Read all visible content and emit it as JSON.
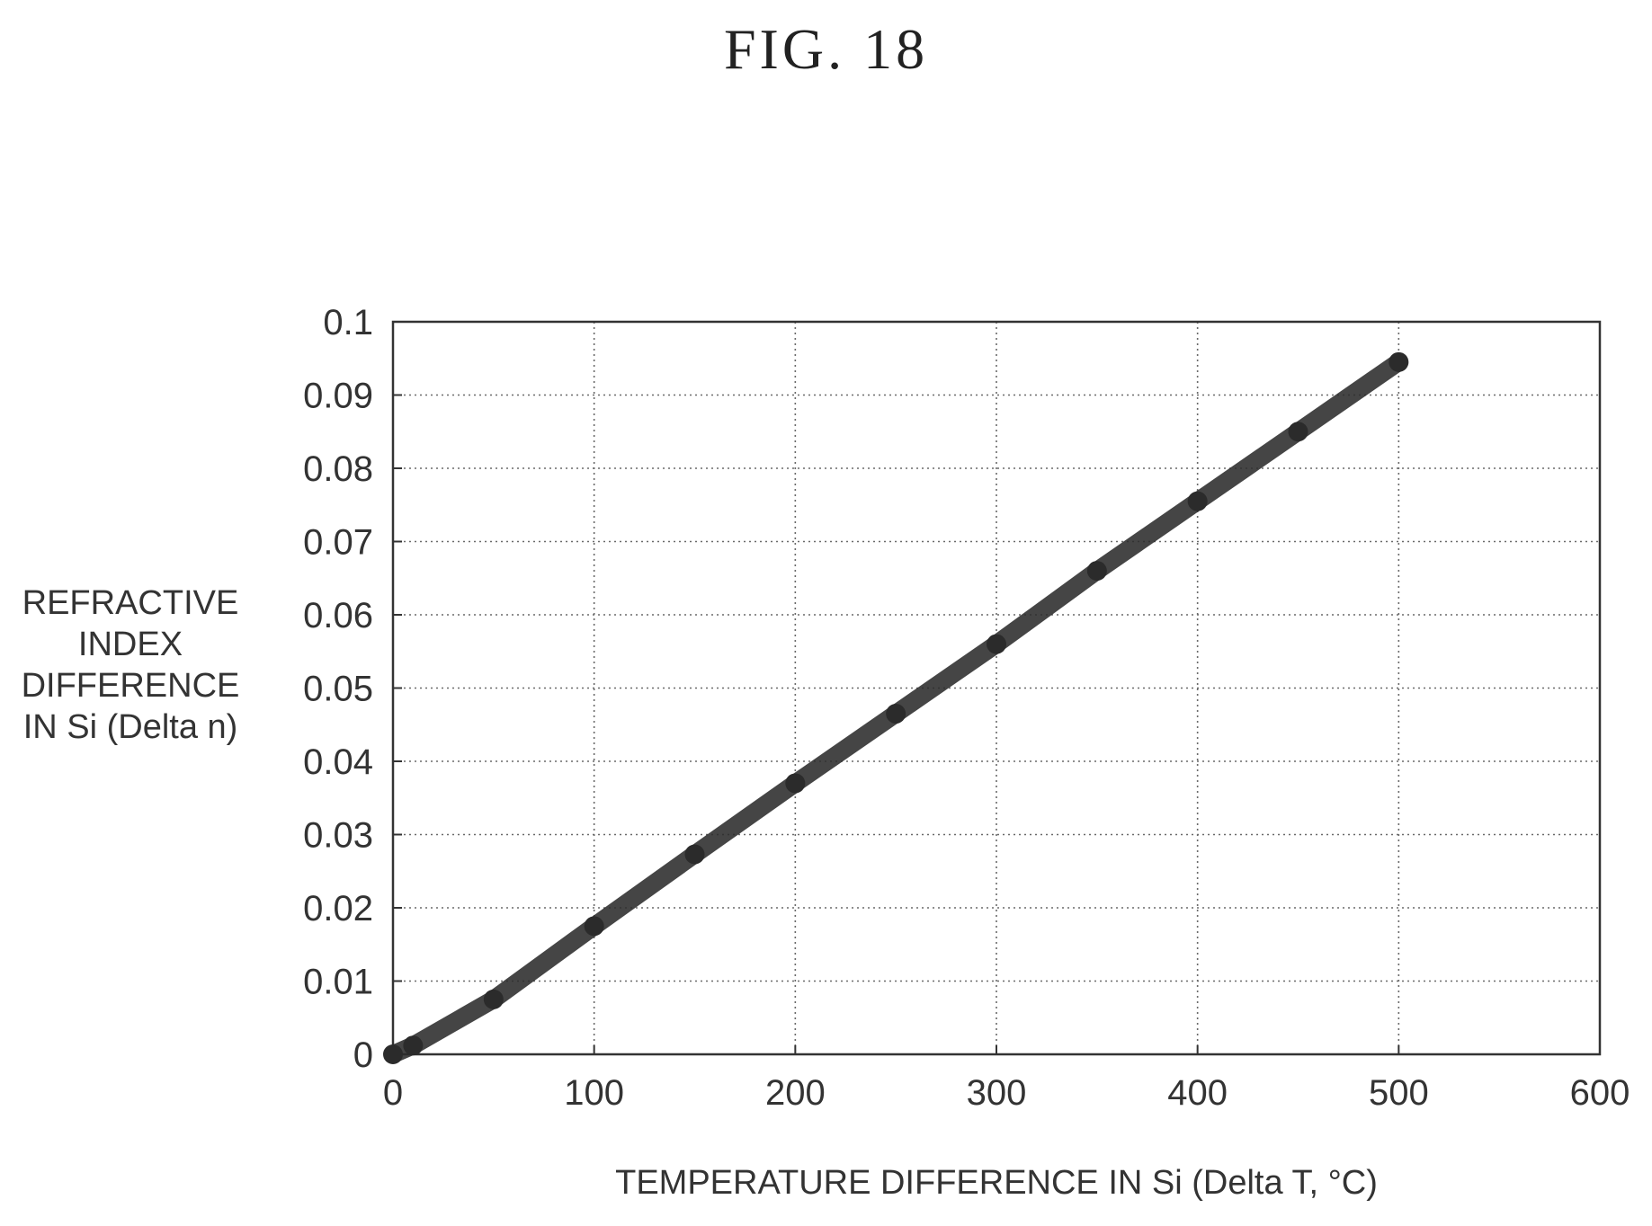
{
  "figure": {
    "title": "FIG. 18"
  },
  "chart_data": {
    "type": "line",
    "xlabel": "TEMPERATURE DIFFERENCE IN Si (Delta T, °C)",
    "ylabel": "REFRACTIVE\nINDEX\nDIFFERENCE\nIN Si (Delta n)",
    "xlim": [
      0,
      600
    ],
    "ylim": [
      0,
      0.1
    ],
    "x_ticks": [
      "0",
      "100",
      "200",
      "300",
      "400",
      "500",
      "600"
    ],
    "y_ticks": [
      "0",
      "0.01",
      "0.02",
      "0.03",
      "0.04",
      "0.05",
      "0.06",
      "0.07",
      "0.08",
      "0.09",
      "0.1"
    ],
    "grid": true,
    "series": [
      {
        "x": [
          0,
          10,
          50,
          100,
          150,
          200,
          250,
          300,
          350,
          400,
          450,
          500
        ],
        "y": [
          0,
          0.0012,
          0.0075,
          0.0175,
          0.0273,
          0.037,
          0.0465,
          0.056,
          0.066,
          0.0755,
          0.085,
          0.0945
        ],
        "color": "#2b2b2b"
      }
    ]
  }
}
